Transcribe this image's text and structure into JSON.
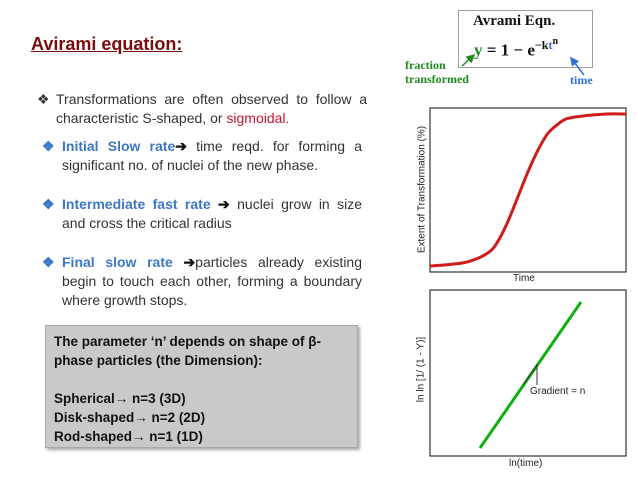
{
  "title": "Avirami equation:",
  "bullet_symbol": "❖",
  "arrow_symbol": "➔",
  "intro": {
    "text": "Transformations are often observed to follow a characteristic S-shaped, or ",
    "highlight": "sigmoidal."
  },
  "bullets": [
    {
      "label": "Initial Slow rate",
      "text": " time reqd. for forming a significant no. of nuclei of the new phase."
    },
    {
      "label": "Intermediate fast rate",
      "text": " nuclei grow in size and cross the critical radius"
    },
    {
      "label": "Final slow rate",
      "text": "particles already existing begin to touch each other, forming a boundary where growth stops."
    }
  ],
  "note_box": {
    "line1": "The parameter ‘n’ depends on shape of β-",
    "line2": "phase particles (the Dimension):",
    "line3": "Spherical→ n=3  (3D)",
    "line4": "Disk-shaped→ n=2 (2D)",
    "line5": "Rod-shaped→ n=1 (1D)"
  },
  "equation": {
    "title": "Avrami Eqn.",
    "y": "y",
    "eq_sign": "=",
    "one": "1",
    "minus": "−",
    "e": "e",
    "neg": "−",
    "k": "k",
    "t": "t",
    "n": "n",
    "fraction_label_1": "fraction",
    "fraction_label_2": "transformed",
    "time_label": "time",
    "colors": {
      "green": "#1f8a1f",
      "blue": "#2f6fd6"
    }
  },
  "chart_data": [
    {
      "type": "line",
      "xlabel": "Time",
      "ylabel": "Extent of Transformation (%)",
      "x": [
        0,
        0.1,
        0.2,
        0.3,
        0.35,
        0.4,
        0.45,
        0.5,
        0.55,
        0.6,
        0.65,
        0.7,
        0.8,
        0.9,
        1.0
      ],
      "y": [
        0,
        1,
        3,
        9,
        17,
        30,
        46,
        62,
        76,
        87,
        93,
        97,
        99,
        100,
        100
      ],
      "series": [
        {
          "color": "#d01c1c"
        }
      ],
      "ticks": false
    },
    {
      "type": "line",
      "xlabel": "ln(time)",
      "ylabel": "ln ln [1/ (1 - Y)]",
      "x": [
        0,
        1
      ],
      "y": [
        0,
        1
      ],
      "annotation": "Gradient = n",
      "series": [
        {
          "color": "#10b010"
        }
      ],
      "ticks": false
    }
  ]
}
